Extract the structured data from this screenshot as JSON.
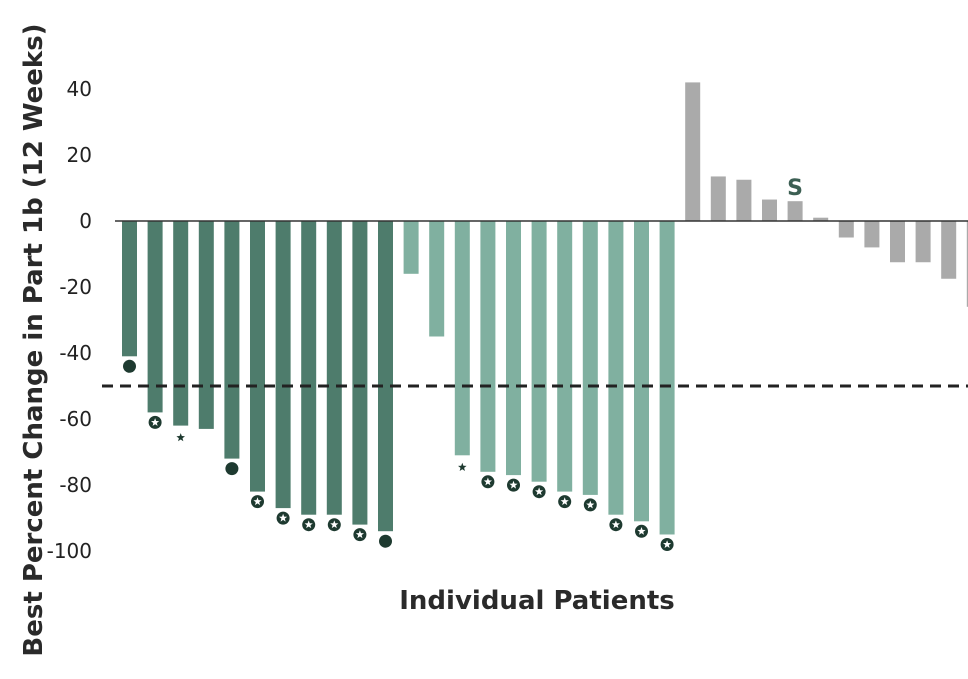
{
  "chart_data": {
    "type": "bar",
    "title": "",
    "xlabel": "Individual Patients",
    "ylabel": "Best Percent Change in Part 1b (12 Weeks)",
    "ylim": [
      -100,
      45
    ],
    "yticks": [
      40,
      20,
      0,
      -20,
      -40,
      -60,
      -80,
      -100
    ],
    "threshold": -50,
    "grid": false,
    "colors": {
      "dark": "#4e7c6c",
      "light": "#80b0a0",
      "gray": "#aaaaaa",
      "marker": "#1e3a30"
    },
    "series": [
      {
        "group": "dark",
        "values": [
          -41,
          -58,
          -62,
          -63,
          -72,
          -82,
          -87,
          -89,
          -89,
          -92,
          -94
        ]
      },
      {
        "group": "light",
        "values": [
          -16,
          -35,
          -71,
          -76,
          -77,
          -79,
          -82,
          -83,
          -89,
          -91,
          -95
        ]
      },
      {
        "group": "gray",
        "values": [
          42,
          13.5,
          12.5,
          6.5,
          6,
          1,
          -5,
          -8,
          -12.5,
          -12.5,
          -17.5,
          -26
        ]
      }
    ],
    "markers": [
      "dot",
      "star-circle",
      "star",
      "none",
      "dot",
      "star-circle",
      "star-circle",
      "star-circle",
      "star-circle",
      "star-circle",
      "dot",
      "none",
      "none",
      "star",
      "star-circle",
      "star-circle",
      "star-circle",
      "star-circle",
      "star-circle",
      "star-circle",
      "star-circle",
      "star-circle",
      "none",
      "none",
      "none",
      "none",
      "none",
      "none",
      "none",
      "none",
      "none",
      "none",
      "none",
      "none"
    ],
    "annotations": [
      {
        "bar_index": 26,
        "text": "S"
      }
    ]
  }
}
